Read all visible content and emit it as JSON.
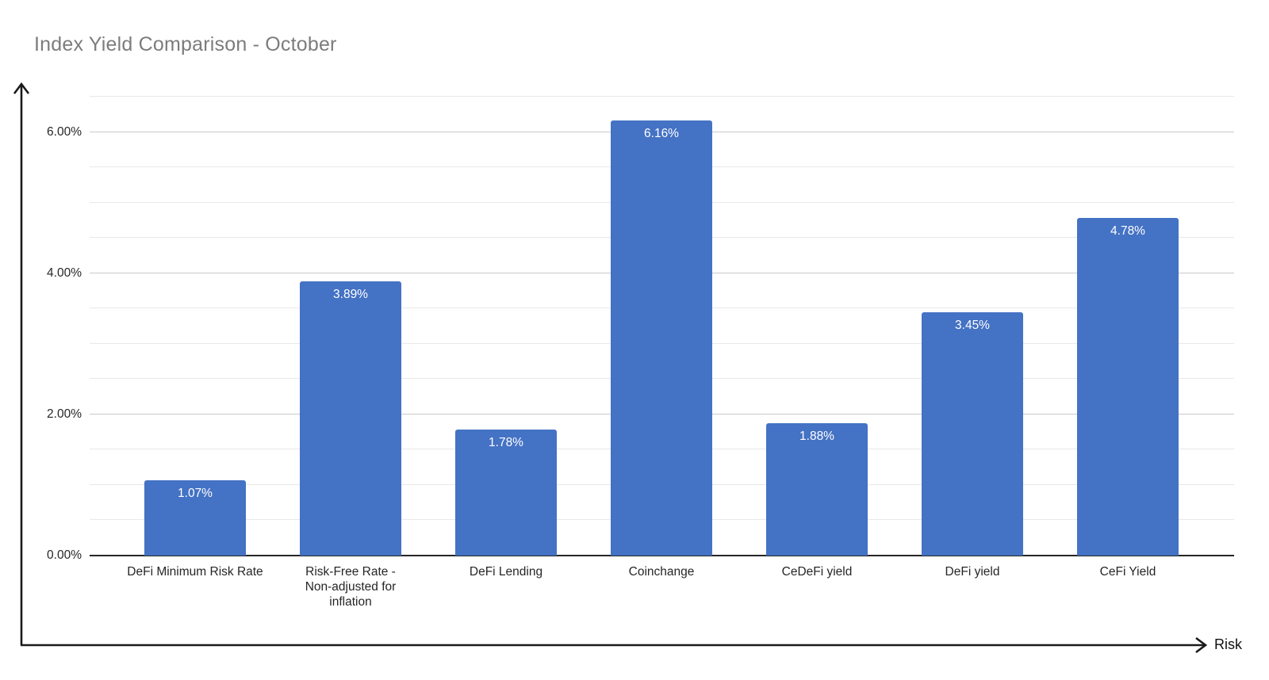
{
  "page": {
    "background": "#ffffff"
  },
  "chart_data": {
    "type": "bar",
    "title": "Index Yield Comparison - October",
    "categories": [
      "DeFi Minimum Risk Rate",
      "Risk-Free Rate -\nNon-adjusted for\ninflation",
      "DeFi Lending",
      "Coinchange",
      "CeDeFi yield",
      "DeFi yield",
      "CeFi Yield"
    ],
    "values": [
      1.07,
      3.89,
      1.78,
      6.16,
      1.88,
      3.45,
      4.78
    ],
    "data_labels": [
      "1.07%",
      "3.89%",
      "1.78%",
      "6.16%",
      "1.88%",
      "3.45%",
      "4.78%"
    ],
    "xlabel": "Risk",
    "ylabel": "",
    "y_ticks": [
      {
        "value": 0,
        "label": "0.00%"
      },
      {
        "value": 2,
        "label": "2.00%"
      },
      {
        "value": 4,
        "label": "4.00%"
      },
      {
        "value": 6,
        "label": "6.00%"
      }
    ],
    "ylim": [
      0,
      6.5
    ],
    "gridline_step": 0.5,
    "grid": true,
    "legend": false,
    "colors": {
      "bar": "#4472C4",
      "title": "#7c7c7c",
      "grid_minor": "#e8e8e8",
      "grid_major": "#c9c9c9",
      "axis": "#262626",
      "tick_text": "#262626",
      "value_label_text": "#ffffff",
      "arrow": "#1a1a1a",
      "page_background": "#ffffff"
    }
  }
}
